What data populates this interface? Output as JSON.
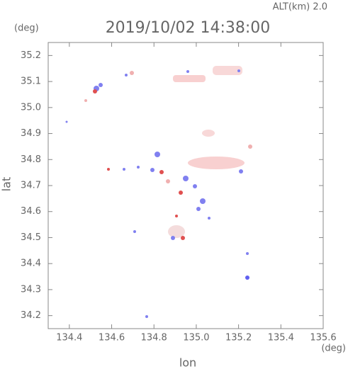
{
  "chart_data": {
    "type": "map",
    "title": "2019/10/02 14:38:00",
    "subtitle": "ALT(km) 2.0",
    "x_label": "lon",
    "y_label": "lat",
    "x_unit": "(deg)",
    "y_unit": "(deg)",
    "xlim": [
      134.3,
      135.6
    ],
    "ylim": [
      34.15,
      35.25
    ],
    "xticks": [
      134.4,
      134.6,
      134.8,
      {
        "value": 135,
        "label": "135.0"
      },
      135.2,
      135.4,
      135.6
    ],
    "yticks": [
      34.2,
      34.3,
      34.4,
      34.5,
      34.6,
      34.7,
      34.8,
      34.9,
      {
        "value": 35,
        "label": "35.0"
      },
      35.1,
      35.2
    ]
  }
}
